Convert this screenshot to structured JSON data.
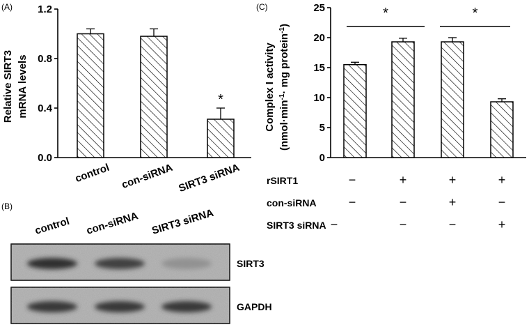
{
  "panels": {
    "a": {
      "label": "(A)"
    },
    "b": {
      "label": "(B)"
    },
    "c": {
      "label": "(C)"
    }
  },
  "chart_data": [
    {
      "type": "bar",
      "panel": "(A)",
      "ylabel_line1": "Relative SIRT3",
      "ylabel_line2": "mRNA levels",
      "xlabel": "",
      "categories": [
        "control",
        "con-siRNA",
        "SIRT3 siRNA"
      ],
      "values": [
        1.0,
        0.98,
        0.31
      ],
      "errors": [
        0.04,
        0.06,
        0.09
      ],
      "ylim": [
        0.0,
        1.2
      ],
      "yticks": [
        "0.0",
        "0.4",
        "0.8",
        "1.2"
      ],
      "bar_pattern": "diagonal-hatch",
      "grid": false,
      "annotations": [
        {
          "category": "SIRT3 siRNA",
          "text": "*"
        }
      ]
    },
    {
      "type": "bar",
      "panel": "(C)",
      "ylabel_line1": "Complex I activity",
      "ylabel_line2": "(nmol·min",
      "ylabel_sup1": "-1",
      "ylabel_mid": "· mg protein",
      "ylabel_sup2": "-1",
      "ylabel_end": ")",
      "xlabel": "",
      "values": [
        15.5,
        19.3,
        19.3,
        9.3
      ],
      "errors": [
        0.4,
        0.6,
        0.7,
        0.5
      ],
      "ylim": [
        0,
        25
      ],
      "yticks": [
        "0",
        "5",
        "10",
        "15",
        "20",
        "25"
      ],
      "bar_pattern": "diagonal-hatch",
      "grid": false,
      "treatments": [
        {
          "name": "rSIRT1",
          "signs": [
            "−",
            "+",
            "+",
            "+"
          ]
        },
        {
          "name": "con-siRNA",
          "signs": [
            "−",
            "−",
            "+",
            "−"
          ]
        },
        {
          "name": "SIRT3 siRNA",
          "signs": [
            "−",
            "−",
            "−",
            "+"
          ]
        }
      ],
      "significance": [
        {
          "from_bar": 1,
          "to_bar": 2,
          "text": "*"
        },
        {
          "from_bar": 3,
          "to_bar": 4,
          "text": "*"
        }
      ]
    }
  ],
  "blot": {
    "lanes": [
      "control",
      "con-siRNA",
      "SIRT3 siRNA"
    ],
    "rows": [
      {
        "label": "SIRT3",
        "intensity": [
          0.85,
          0.75,
          0.3
        ]
      },
      {
        "label": "GAPDH",
        "intensity": [
          0.8,
          0.8,
          0.8
        ]
      }
    ]
  }
}
